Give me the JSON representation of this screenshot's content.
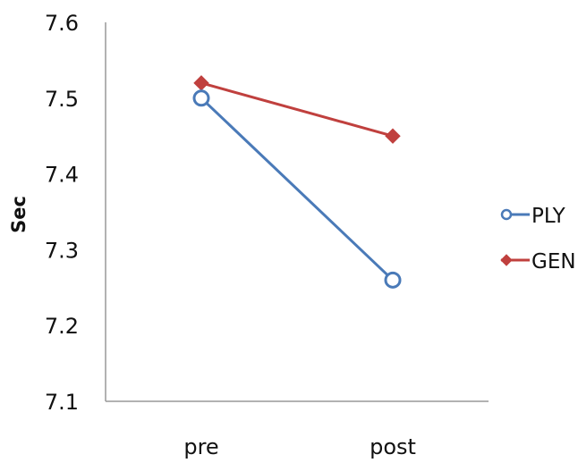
{
  "chart_data": {
    "type": "line",
    "title": "",
    "xlabel": "",
    "ylabel": "Sec",
    "categories": [
      "pre",
      "post"
    ],
    "ylim": [
      7.1,
      7.6
    ],
    "yticks": [
      "7.1",
      "7.2",
      "7.3",
      "7.4",
      "7.5",
      "7.6"
    ],
    "grid": false,
    "legend_position": "right",
    "series": [
      {
        "name": "PLY",
        "values": [
          7.5,
          7.26
        ],
        "color": "#4a7ab8",
        "marker": "open-circle"
      },
      {
        "name": "GEN",
        "values": [
          7.52,
          7.45
        ],
        "color": "#c0403e",
        "marker": "diamond"
      }
    ]
  }
}
